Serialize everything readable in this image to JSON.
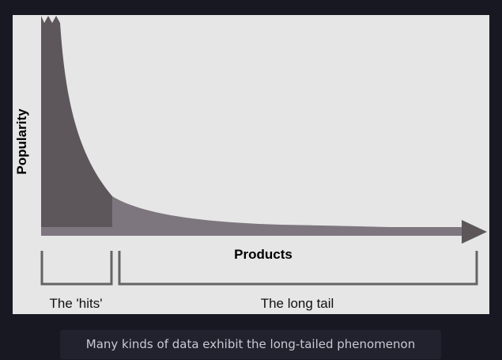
{
  "diagram": {
    "y_axis_label": "Popularity",
    "x_axis_label": "Products",
    "segments": [
      {
        "label": "The 'hits'"
      },
      {
        "label": "The long tail"
      }
    ],
    "colors": {
      "background": "#e6e6e6",
      "hits_fill": "#5d575c",
      "tail_fill": "#7e767f",
      "axis": "#5c5659",
      "bracket": "#646464"
    }
  },
  "caption": {
    "text": "Many kinds of data exhibit the long-tailed phenomenon"
  }
}
